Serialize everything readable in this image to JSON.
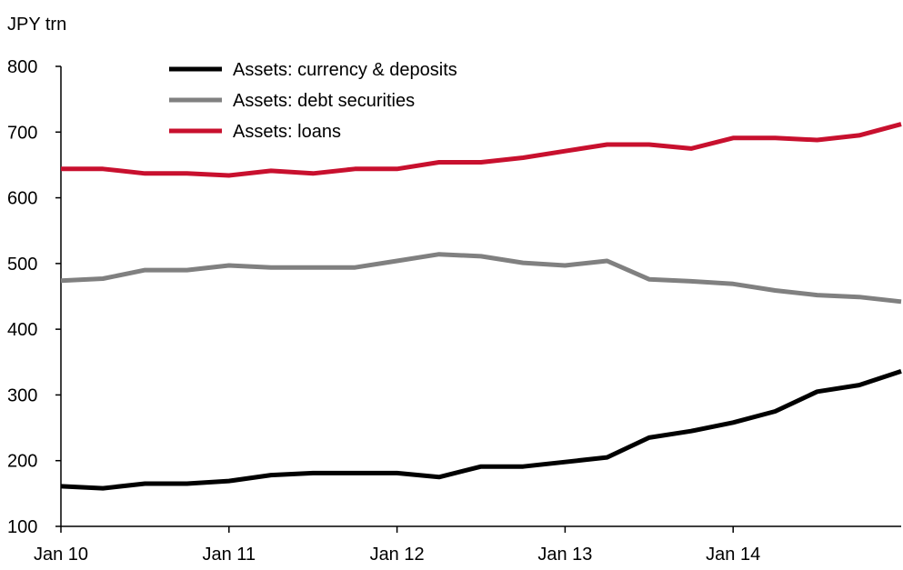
{
  "chart_data": {
    "type": "line",
    "y_unit_label": "JPY trn",
    "ylim": [
      100,
      800
    ],
    "yticks": [
      100,
      200,
      300,
      400,
      500,
      600,
      700,
      800
    ],
    "x_tick_labels": [
      "Jan 10",
      "Jan 11",
      "Jan 12",
      "Jan 13",
      "Jan 14"
    ],
    "x_tick_positions": [
      0,
      4,
      8,
      12,
      16
    ],
    "x_index_max": 20,
    "grid": false,
    "legend_placement": "top-center",
    "series": [
      {
        "name": "Assets: currency & deposits",
        "color": "#000000",
        "values": [
          161,
          158,
          165,
          165,
          169,
          178,
          181,
          181,
          181,
          175,
          191,
          191,
          198,
          205,
          235,
          245,
          258,
          275,
          305,
          315,
          336
        ]
      },
      {
        "name": "Assets: debt securities",
        "color": "#808080",
        "values": [
          474,
          477,
          490,
          490,
          497,
          494,
          494,
          494,
          504,
          514,
          511,
          501,
          497,
          504,
          476,
          473,
          469,
          459,
          452,
          449,
          442
        ]
      },
      {
        "name": "Assets: loans",
        "color": "#c8102e",
        "values": [
          644,
          644,
          637,
          637,
          634,
          641,
          637,
          644,
          644,
          654,
          654,
          661,
          671,
          681,
          681,
          675,
          691,
          691,
          688,
          695,
          712
        ]
      }
    ]
  }
}
